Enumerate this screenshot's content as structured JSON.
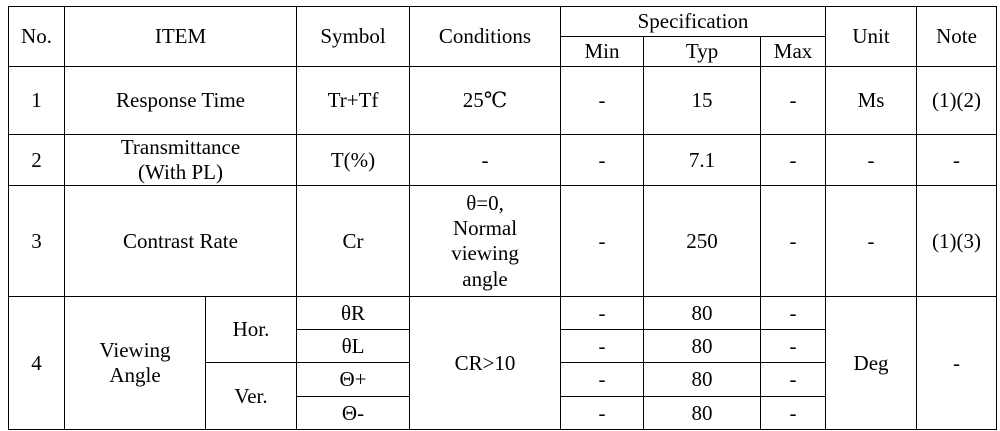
{
  "headers": {
    "no": "No.",
    "item": "ITEM",
    "symbol": "Symbol",
    "conditions": "Conditions",
    "specification": "Specification",
    "min": "Min",
    "typ": "Typ",
    "max": "Max",
    "unit": "Unit",
    "note": "Note"
  },
  "rows": [
    {
      "no": "1",
      "item": "Response Time",
      "symbol": "Tr+Tf",
      "conditions": "25℃",
      "min": "-",
      "typ": "15",
      "max": "-",
      "unit": "Ms",
      "note": "(1)(2)"
    },
    {
      "no": "2",
      "item": "Transmittance\n(With PL)",
      "symbol": "T(%)",
      "conditions": "-",
      "min": "-",
      "typ": "7.1",
      "max": "-",
      "unit": "-",
      "note": "-"
    },
    {
      "no": "3",
      "item": "Contrast Rate",
      "symbol": "Cr",
      "conditions": "θ=0,\nNormal\nviewing\nangle",
      "min": "-",
      "typ": "250",
      "max": "-",
      "unit": "-",
      "note": "(1)(3)"
    }
  ],
  "viewing": {
    "no": "4",
    "item": "Viewing\nAngle",
    "hor": "Hor.",
    "ver": "Ver.",
    "conditions": "CR>10",
    "unit": "Deg",
    "note": "-",
    "sub": [
      {
        "symbol": "θR",
        "min": "-",
        "typ": "80",
        "max": "-"
      },
      {
        "symbol": "θL",
        "min": "-",
        "typ": "80",
        "max": "-"
      },
      {
        "symbol": "Θ+",
        "min": "-",
        "typ": "80",
        "max": "-"
      },
      {
        "symbol": "Θ-",
        "min": "-",
        "typ": "80",
        "max": "-"
      }
    ]
  }
}
